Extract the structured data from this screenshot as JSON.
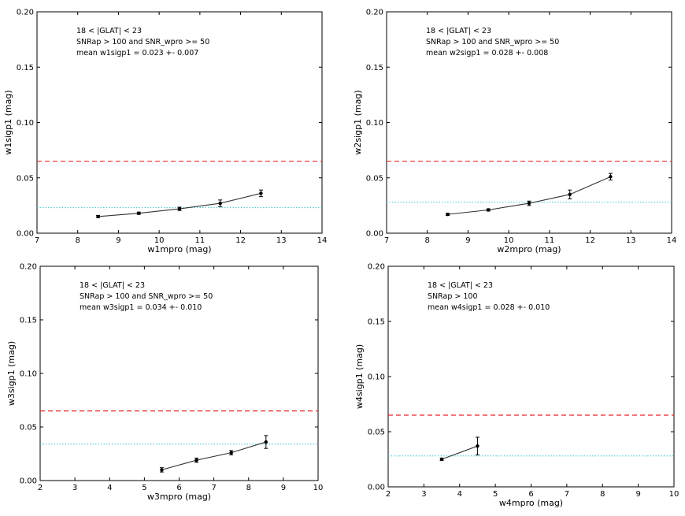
{
  "chart_data": [
    {
      "type": "line",
      "xlabel": "w1mpro (mag)",
      "ylabel": "w1sigp1 (mag)",
      "xlim": [
        7,
        14
      ],
      "ylim": [
        0,
        0.2
      ],
      "xticks": [
        "7",
        "8",
        "9",
        "10",
        "11",
        "12",
        "13",
        "14"
      ],
      "yticks": [
        "0.00",
        "0.05",
        "0.10",
        "0.15",
        "0.20"
      ],
      "annotations": [
        "18 < |GLAT| < 23",
        "SNRap > 100 and  SNR_wpro >= 50",
        "mean w1sigp1 = 0.023 +- 0.007"
      ],
      "series": [
        {
          "x": [
            8.5,
            9.5,
            10.5,
            11.5,
            12.5
          ],
          "y": [
            0.015,
            0.018,
            0.022,
            0.027,
            0.036
          ],
          "yerr": [
            0.001,
            0.001,
            0.0015,
            0.003,
            0.003
          ]
        }
      ],
      "hlines": [
        {
          "y": 0.065,
          "color": "#e8252a",
          "style": "dashed"
        },
        {
          "y": 0.023,
          "color": "#39c6d6",
          "style": "dotted"
        }
      ],
      "grid": false
    },
    {
      "type": "line",
      "xlabel": "w2mpro (mag)",
      "ylabel": "w2sigp1 (mag)",
      "xlim": [
        7,
        14
      ],
      "ylim": [
        0,
        0.2
      ],
      "xticks": [
        "7",
        "8",
        "9",
        "10",
        "11",
        "12",
        "13",
        "14"
      ],
      "yticks": [
        "0.00",
        "0.05",
        "0.10",
        "0.15",
        "0.20"
      ],
      "annotations": [
        "18 < |GLAT| < 23",
        "SNRap > 100 and  SNR_wpro >= 50",
        "mean w2sigp1 = 0.028 +- 0.008"
      ],
      "series": [
        {
          "x": [
            8.5,
            9.5,
            10.5,
            11.5,
            12.5
          ],
          "y": [
            0.017,
            0.021,
            0.027,
            0.035,
            0.051
          ],
          "yerr": [
            0.001,
            0.001,
            0.002,
            0.004,
            0.003
          ]
        }
      ],
      "hlines": [
        {
          "y": 0.065,
          "color": "#e8252a",
          "style": "dashed"
        },
        {
          "y": 0.028,
          "color": "#39c6d6",
          "style": "dotted"
        }
      ],
      "grid": false
    },
    {
      "type": "line",
      "xlabel": "w3mpro (mag)",
      "ylabel": "w3sigp1 (mag)",
      "xlim": [
        2,
        10
      ],
      "ylim": [
        0,
        0.2
      ],
      "xticks": [
        "2",
        "3",
        "4",
        "5",
        "6",
        "7",
        "8",
        "9",
        "10"
      ],
      "yticks": [
        "0.00",
        "0.05",
        "0.10",
        "0.15",
        "0.20"
      ],
      "annotations": [
        "18 < |GLAT| < 23",
        "SNRap > 100 and  SNR_wpro >= 50",
        "mean w3sigp1 = 0.034 +- 0.010"
      ],
      "series": [
        {
          "x": [
            5.5,
            6.5,
            7.5,
            8.5
          ],
          "y": [
            0.01,
            0.019,
            0.026,
            0.036
          ],
          "yerr": [
            0.002,
            0.002,
            0.002,
            0.006
          ]
        }
      ],
      "hlines": [
        {
          "y": 0.065,
          "color": "#e8252a",
          "style": "dashed"
        },
        {
          "y": 0.034,
          "color": "#39c6d6",
          "style": "dotted"
        }
      ],
      "grid": false
    },
    {
      "type": "line",
      "xlabel": "w4mpro (mag)",
      "ylabel": "w4sigp1 (mag)",
      "xlim": [
        2,
        10
      ],
      "ylim": [
        0,
        0.2
      ],
      "xticks": [
        "2",
        "3",
        "4",
        "5",
        "6",
        "7",
        "8",
        "9",
        "10"
      ],
      "yticks": [
        "0.00",
        "0.05",
        "0.10",
        "0.15",
        "0.20"
      ],
      "annotations": [
        "18 < |GLAT| < 23",
        "SNRap > 100",
        "mean w4sigp1 = 0.028 +- 0.010"
      ],
      "series": [
        {
          "x": [
            3.5,
            4.5
          ],
          "y": [
            0.025,
            0.037
          ],
          "yerr": [
            0.001,
            0.008
          ]
        }
      ],
      "hlines": [
        {
          "y": 0.065,
          "color": "#e8252a",
          "style": "dashed"
        },
        {
          "y": 0.028,
          "color": "#39c6d6",
          "style": "dotted"
        }
      ],
      "grid": false
    }
  ]
}
